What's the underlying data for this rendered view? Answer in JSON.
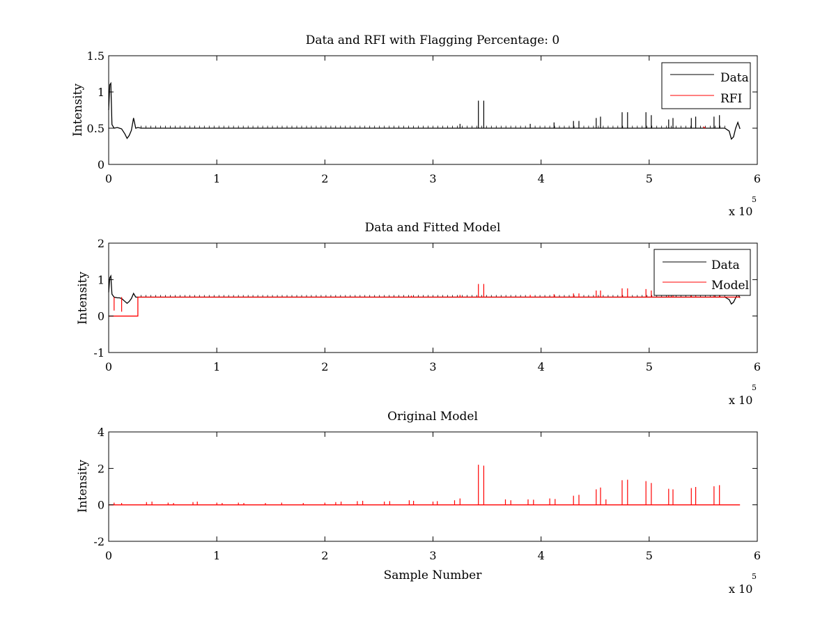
{
  "chart_data": [
    {
      "type": "line",
      "title": "Data and RFI with Flagging Percentage: 0",
      "xlabel": "",
      "ylabel": "Intensity",
      "xlim": [
        0,
        6
      ],
      "ylim": [
        0,
        1.5
      ],
      "x_ticks": [
        "0",
        "1",
        "2",
        "3",
        "4",
        "5",
        "6"
      ],
      "y_ticks": [
        "0",
        "0.5",
        "1",
        "1.5"
      ],
      "x_exponent": {
        "base": "x 10",
        "power": "5"
      },
      "legend_position": "top-right",
      "legend": [
        "Data",
        "RFI"
      ],
      "series": [
        {
          "name": "Data",
          "color": "#000000",
          "baseline": 0.505,
          "x": [
            0,
            0.01,
            0.02,
            0.03,
            0.05,
            0.08,
            0.1,
            0.12,
            0.15,
            0.17,
            0.19,
            0.21,
            0.23,
            0.25,
            0.27,
            0.3,
            5.7,
            5.74,
            5.76,
            5.78,
            5.8,
            5.82,
            5.84
          ],
          "y": [
            0.75,
            1.1,
            1.12,
            0.55,
            0.5,
            0.51,
            0.5,
            0.49,
            0.42,
            0.36,
            0.4,
            0.47,
            0.64,
            0.5,
            0.51,
            0.5,
            0.5,
            0.46,
            0.35,
            0.38,
            0.5,
            0.58,
            0.49
          ],
          "spikes": [
            [
              3.42,
              0.88
            ],
            [
              3.47,
              0.88
            ],
            [
              4.51,
              0.64
            ],
            [
              4.55,
              0.66
            ],
            [
              4.75,
              0.72
            ],
            [
              4.8,
              0.72
            ],
            [
              4.97,
              0.72
            ],
            [
              5.02,
              0.68
            ],
            [
              5.18,
              0.62
            ],
            [
              5.22,
              0.64
            ],
            [
              5.39,
              0.64
            ],
            [
              5.43,
              0.66
            ],
            [
              5.6,
              0.66
            ],
            [
              5.65,
              0.68
            ],
            [
              4.3,
              0.6
            ],
            [
              4.35,
              0.6
            ],
            [
              4.12,
              0.58
            ],
            [
              3.9,
              0.56
            ],
            [
              3.25,
              0.56
            ]
          ]
        },
        {
          "name": "RFI",
          "color": "#ff0000",
          "baseline": 0.505,
          "x": [
            5.5,
            5.52
          ],
          "y": [
            0.52,
            0.5
          ],
          "spikes": []
        }
      ]
    },
    {
      "type": "line",
      "title": "Data and Fitted Model",
      "xlabel": "",
      "ylabel": "Intensity",
      "xlim": [
        0,
        6
      ],
      "ylim": [
        -1,
        2
      ],
      "x_ticks": [
        "0",
        "1",
        "2",
        "3",
        "4",
        "5",
        "6"
      ],
      "y_ticks": [
        "-1",
        "0",
        "1",
        "2"
      ],
      "x_exponent": {
        "base": "x 10",
        "power": "5"
      },
      "legend_position": "top-right",
      "legend": [
        "Data",
        "Model"
      ],
      "series": [
        {
          "name": "Data",
          "color": "#000000",
          "baseline": 0.52,
          "x": [
            0,
            0.01,
            0.02,
            0.03,
            0.05,
            0.08,
            0.1,
            0.12,
            0.15,
            0.17,
            0.19,
            0.21,
            0.23,
            0.25,
            0.27,
            0.3,
            5.7,
            5.74,
            5.76,
            5.78,
            5.8,
            5.82,
            5.84
          ],
          "y": [
            0.65,
            1.05,
            1.1,
            0.6,
            0.52,
            0.5,
            0.5,
            0.48,
            0.4,
            0.35,
            0.4,
            0.48,
            0.62,
            0.52,
            0.52,
            0.52,
            0.52,
            0.45,
            0.33,
            0.38,
            0.5,
            0.6,
            0.5
          ],
          "spikes": []
        },
        {
          "name": "Model",
          "color": "#ff0000",
          "baseline": 0.52,
          "x": [
            0,
            0.27,
            0.27,
            0.3,
            5.84
          ],
          "y": [
            0,
            0,
            0.52,
            0.52,
            0.52
          ],
          "spikes": [
            [
              0.05,
              0.15
            ],
            [
              0.12,
              0.12
            ],
            [
              3.42,
              0.88
            ],
            [
              3.47,
              0.88
            ],
            [
              4.51,
              0.7
            ],
            [
              4.55,
              0.7
            ],
            [
              4.75,
              0.76
            ],
            [
              4.8,
              0.76
            ],
            [
              4.97,
              0.74
            ],
            [
              5.02,
              0.7
            ],
            [
              5.18,
              0.64
            ],
            [
              5.22,
              0.64
            ],
            [
              5.39,
              0.64
            ],
            [
              5.43,
              0.66
            ],
            [
              5.6,
              0.66
            ],
            [
              5.65,
              0.68
            ],
            [
              4.3,
              0.62
            ],
            [
              4.35,
              0.62
            ],
            [
              4.12,
              0.6
            ],
            [
              3.9,
              0.58
            ],
            [
              3.25,
              0.58
            ],
            [
              2.8,
              0.56
            ]
          ]
        }
      ]
    },
    {
      "type": "line",
      "title": "Original Model",
      "xlabel": "Sample Number",
      "ylabel": "Intensity",
      "xlim": [
        0,
        6
      ],
      "ylim": [
        -2,
        4
      ],
      "x_ticks": [
        "0",
        "1",
        "2",
        "3",
        "4",
        "5",
        "6"
      ],
      "y_ticks": [
        "-2",
        "0",
        "2",
        "4"
      ],
      "x_exponent": {
        "base": "x 10",
        "power": "5"
      },
      "legend": [],
      "series": [
        {
          "name": "",
          "color": "#ff0000",
          "baseline": 0,
          "x": [
            0,
            5.84
          ],
          "y": [
            0,
            0
          ],
          "spikes": [
            [
              0.05,
              0.12
            ],
            [
              0.12,
              0.1
            ],
            [
              0.35,
              0.15
            ],
            [
              0.4,
              0.18
            ],
            [
              0.55,
              0.12
            ],
            [
              0.6,
              0.1
            ],
            [
              0.78,
              0.15
            ],
            [
              0.82,
              0.18
            ],
            [
              1.0,
              0.12
            ],
            [
              1.05,
              0.1
            ],
            [
              1.2,
              0.12
            ],
            [
              1.25,
              0.1
            ],
            [
              1.45,
              0.1
            ],
            [
              1.6,
              0.12
            ],
            [
              1.8,
              0.1
            ],
            [
              2.0,
              0.12
            ],
            [
              2.1,
              0.15
            ],
            [
              2.15,
              0.18
            ],
            [
              2.3,
              0.2
            ],
            [
              2.35,
              0.22
            ],
            [
              2.55,
              0.18
            ],
            [
              2.6,
              0.2
            ],
            [
              2.78,
              0.25
            ],
            [
              2.82,
              0.22
            ],
            [
              3.0,
              0.18
            ],
            [
              3.04,
              0.2
            ],
            [
              3.2,
              0.25
            ],
            [
              3.25,
              0.35
            ],
            [
              3.42,
              2.2
            ],
            [
              3.47,
              2.15
            ],
            [
              3.67,
              0.3
            ],
            [
              3.72,
              0.25
            ],
            [
              3.88,
              0.3
            ],
            [
              3.93,
              0.28
            ],
            [
              4.08,
              0.35
            ],
            [
              4.13,
              0.32
            ],
            [
              4.3,
              0.5
            ],
            [
              4.35,
              0.55
            ],
            [
              4.51,
              0.85
            ],
            [
              4.55,
              0.95
            ],
            [
              4.6,
              0.3
            ],
            [
              4.75,
              1.35
            ],
            [
              4.8,
              1.38
            ],
            [
              4.97,
              1.3
            ],
            [
              5.02,
              1.2
            ],
            [
              5.18,
              0.88
            ],
            [
              5.22,
              0.85
            ],
            [
              5.39,
              0.92
            ],
            [
              5.43,
              0.98
            ],
            [
              5.6,
              1.02
            ],
            [
              5.65,
              1.08
            ]
          ]
        }
      ]
    }
  ]
}
